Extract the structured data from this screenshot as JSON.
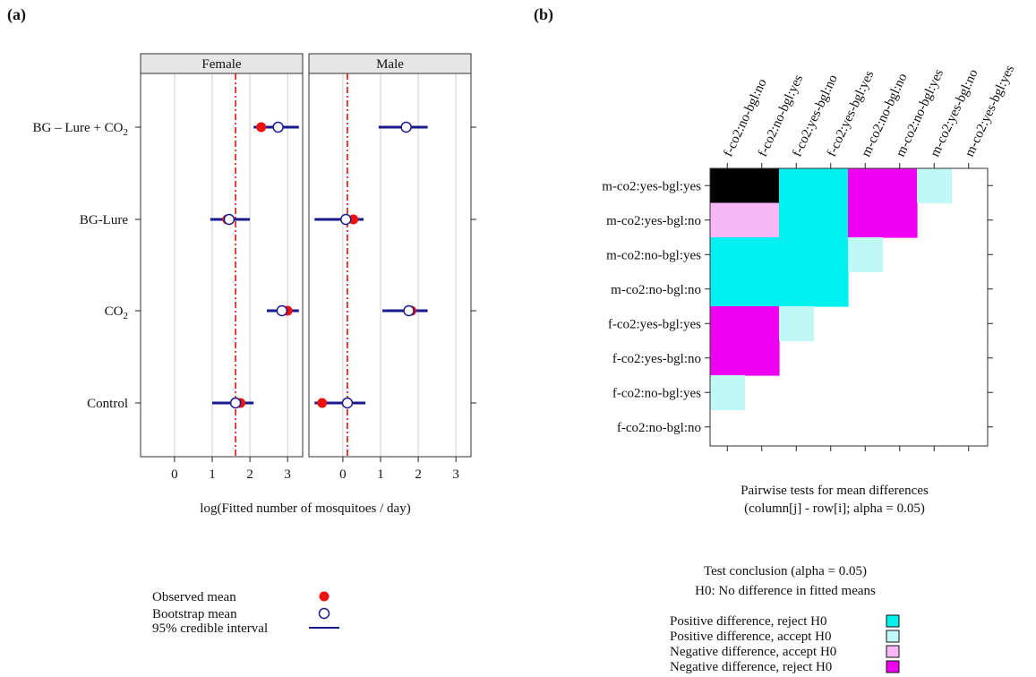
{
  "panel_a_label": "(a)",
  "panel_b_label": "(b)",
  "chart_data": [
    {
      "type": "scatter",
      "panels": [
        "Female",
        "Male"
      ],
      "categories": [
        "Control",
        "CO2",
        "BG-Lure",
        "BG – Lure + CO2"
      ],
      "category_labels": [
        {
          "base": "Control",
          "sub": ""
        },
        {
          "base": "CO",
          "sub": "2"
        },
        {
          "base": "BG-Lure",
          "sub": ""
        },
        {
          "base": "BG – Lure + CO",
          "sub": "2"
        }
      ],
      "xticks": [
        0,
        1,
        2,
        3
      ],
      "xlim": [
        -0.9,
        3.4
      ],
      "xlabel": "log(Fitted number of mosquitoes / day)",
      "reference_line": {
        "Female": 1.62,
        "Male": 0.12
      },
      "series": [
        {
          "name": "Observed mean",
          "Female": [
            1.75,
            3.0,
            1.4,
            2.3
          ],
          "Male": [
            -0.55,
            1.82,
            0.28,
            1.7
          ]
        },
        {
          "name": "Bootstrap mean",
          "Female": [
            1.62,
            2.85,
            1.45,
            2.75
          ],
          "Male": [
            0.12,
            1.75,
            0.08,
            1.68
          ]
        },
        {
          "name": "95% credible interval",
          "Female": [
            [
              1.0,
              2.1
            ],
            [
              2.45,
              3.3
            ],
            [
              0.95,
              2.0
            ],
            [
              2.1,
              3.3
            ]
          ],
          "Male": [
            [
              -0.75,
              0.6
            ],
            [
              1.05,
              2.25
            ],
            [
              -0.75,
              0.55
            ],
            [
              0.95,
              2.25
            ]
          ]
        }
      ],
      "legend": [
        {
          "label": "Observed mean",
          "symbol": "filled-dot",
          "color": "#ee1111"
        },
        {
          "label": "Bootstrap mean",
          "symbol": "open-circle",
          "color": "#1a1a8c"
        },
        {
          "label": "95% credible interval",
          "symbol": "line",
          "color": "#1a1a8c"
        }
      ],
      "colors": {
        "observed": "#ee1111",
        "bootstrap": "#1a1a8c",
        "interval": "#1a1a8c",
        "refline": "#dd0000"
      }
    },
    {
      "type": "heatmap",
      "columns": [
        "f-co2:no-bgl:no",
        "f-co2:no-bgl:yes",
        "f-co2:yes-bgl:no",
        "f-co2:yes-bgl:yes",
        "m-co2:no-bgl:no",
        "m-co2:no-bgl:yes",
        "m-co2:yes-bgl:no",
        "m-co2:yes-bgl:yes"
      ],
      "rows": [
        "m-co2:yes-bgl:yes",
        "m-co2:yes-bgl:no",
        "m-co2:no-bgl:yes",
        "m-co2:no-bgl:no",
        "f-co2:yes-bgl:yes",
        "f-co2:yes-bgl:no",
        "f-co2:no-bgl:yes",
        "f-co2:no-bgl:no"
      ],
      "cells": [
        [
          "nr",
          "nr",
          "pr",
          "pr",
          "rn",
          "rn",
          "pa",
          ""
        ],
        [
          "na",
          "na",
          "pr",
          "pr",
          "rn",
          "rn",
          "",
          ""
        ],
        [
          "pr",
          "pr",
          "pr",
          "pr",
          "pa",
          "",
          "",
          ""
        ],
        [
          "pr",
          "pr",
          "pr",
          "pr",
          "",
          "",
          "",
          ""
        ],
        [
          "rn",
          "rn",
          "pa",
          "",
          "",
          "",
          "",
          ""
        ],
        [
          "rn",
          "rn",
          "",
          "",
          "",
          "",
          "",
          ""
        ],
        [
          "pa",
          "",
          "",
          "",
          "",
          "",
          "",
          ""
        ],
        [
          "",
          "",
          "",
          "",
          "",
          "",
          "",
          ""
        ]
      ],
      "title_line1": "Pairwise tests for mean differences",
      "title_line2": "(column[j] - row[i]; alpha = 0.05)",
      "legend_title_line1": "Test conclusion (alpha = 0.05)",
      "legend_title_line2": "H0: No difference in fitted means",
      "legend": [
        {
          "code": "pr",
          "label": "Positive difference, reject H0",
          "color": "#00f0f0"
        },
        {
          "code": "pa",
          "label": "Positive difference, accept H0",
          "color": "#c0f8f8"
        },
        {
          "code": "na",
          "label": "Negative difference, accept H0",
          "color": "#f8b8f8"
        },
        {
          "code": "rn",
          "label": "Negative difference, reject H0",
          "color": "#f000f0"
        }
      ]
    }
  ]
}
